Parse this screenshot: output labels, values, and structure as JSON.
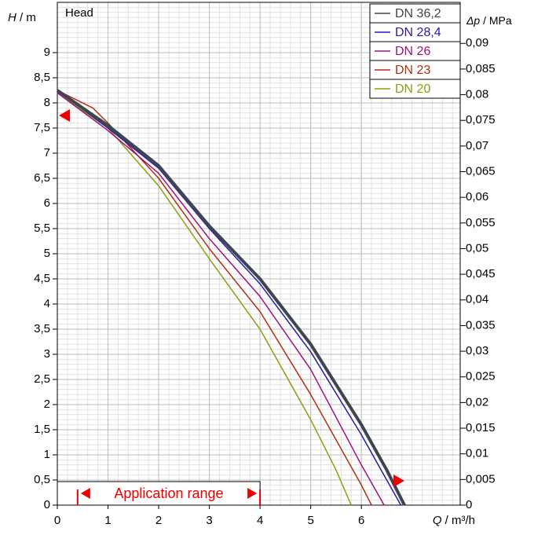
{
  "chart_data": {
    "type": "line",
    "title": "Head",
    "y_label_symbol": "H",
    "y_label_unit": "/ m",
    "y2_label_symbol": "Δp",
    "y2_label_unit": "/ MPa",
    "x_label_symbol": "Q",
    "x_label_unit": "/ m³/h",
    "xlim": [
      0,
      7.95
    ],
    "ylim": [
      0,
      10
    ],
    "y2lim": [
      0,
      0.098
    ],
    "xticks": [
      0,
      1,
      2,
      3,
      4,
      5,
      6
    ],
    "yticks": [
      0,
      {
        "value": 0.5,
        "label": "0,5"
      },
      1,
      {
        "value": 1.5,
        "label": "1,5"
      },
      2,
      {
        "value": 2.5,
        "label": "2,5"
      },
      3,
      {
        "value": 3.5,
        "label": "3,5"
      },
      4,
      {
        "value": 4.5,
        "label": "4,5"
      },
      5,
      {
        "value": 5.5,
        "label": "5,5"
      },
      6,
      {
        "value": 6.5,
        "label": "6,5"
      },
      7,
      {
        "value": 7.5,
        "label": "7,5"
      },
      8,
      {
        "value": 8.5,
        "label": "8,5"
      },
      9
    ],
    "y2ticks": [
      0,
      {
        "value": 0.005,
        "label": "0,005"
      },
      {
        "value": 0.01,
        "label": "0,01"
      },
      {
        "value": 0.015,
        "label": "0,015"
      },
      {
        "value": 0.02,
        "label": "0,02"
      },
      {
        "value": 0.025,
        "label": "0,025"
      },
      {
        "value": 0.03,
        "label": "0,03"
      },
      {
        "value": 0.035,
        "label": "0,035"
      },
      {
        "value": 0.04,
        "label": "0,04"
      },
      {
        "value": 0.045,
        "label": "0,045"
      },
      {
        "value": 0.05,
        "label": "0,05"
      },
      {
        "value": 0.055,
        "label": "0,055"
      },
      {
        "value": 0.06,
        "label": "0,06"
      },
      {
        "value": 0.065,
        "label": "0,065"
      },
      {
        "value": 0.07,
        "label": "0,07"
      },
      {
        "value": 0.075,
        "label": "0,075"
      },
      {
        "value": 0.08,
        "label": "0,08"
      },
      {
        "value": 0.085,
        "label": "0,085"
      },
      {
        "value": 0.09,
        "label": "0,09"
      }
    ],
    "grid": true,
    "x_minor_step": 0.2,
    "y_minor_step": 0.1,
    "legend": "top-right",
    "series": [
      {
        "name": "DN 36,2",
        "color": "#3c4650",
        "linewidth": 4,
        "x": [
          0,
          1,
          2,
          3,
          4,
          5,
          6,
          6.5,
          6.85
        ],
        "values": [
          8.25,
          7.55,
          6.75,
          5.55,
          4.5,
          3.2,
          1.6,
          0.7,
          0
        ]
      },
      {
        "name": "DN 28,4",
        "color": "#2a1aa8",
        "linewidth": 1.5,
        "x": [
          0,
          1,
          2,
          3,
          4,
          5,
          6,
          6.5,
          6.78
        ],
        "values": [
          8.25,
          7.5,
          6.7,
          5.5,
          4.4,
          3.05,
          1.4,
          0.5,
          0
        ]
      },
      {
        "name": "DN 26",
        "color": "#a0107c",
        "linewidth": 1.5,
        "x": [
          0,
          1,
          2,
          3,
          4,
          5,
          6,
          6.45
        ],
        "values": [
          8.2,
          7.45,
          6.6,
          5.3,
          4.15,
          2.7,
          0.8,
          0
        ]
      },
      {
        "name": "DN 23",
        "color": "#b03010",
        "linewidth": 1.5,
        "x": [
          0,
          0.7,
          1,
          2,
          3,
          4,
          5,
          6,
          6.2
        ],
        "values": [
          8.25,
          7.9,
          7.6,
          6.5,
          5.1,
          3.85,
          2.2,
          0.4,
          0
        ]
      },
      {
        "name": "DN 20",
        "color": "#8aa010",
        "linewidth": 1.5,
        "x": [
          0,
          1,
          2,
          3,
          4,
          5,
          5.5,
          5.8
        ],
        "values": [
          8.2,
          7.5,
          6.35,
          4.9,
          3.5,
          1.7,
          0.7,
          0
        ]
      }
    ],
    "application_range": {
      "label": "Application range",
      "from": 0.4,
      "to": 4
    },
    "head_marker": 7.75,
    "flow_marker": 6.85
  }
}
